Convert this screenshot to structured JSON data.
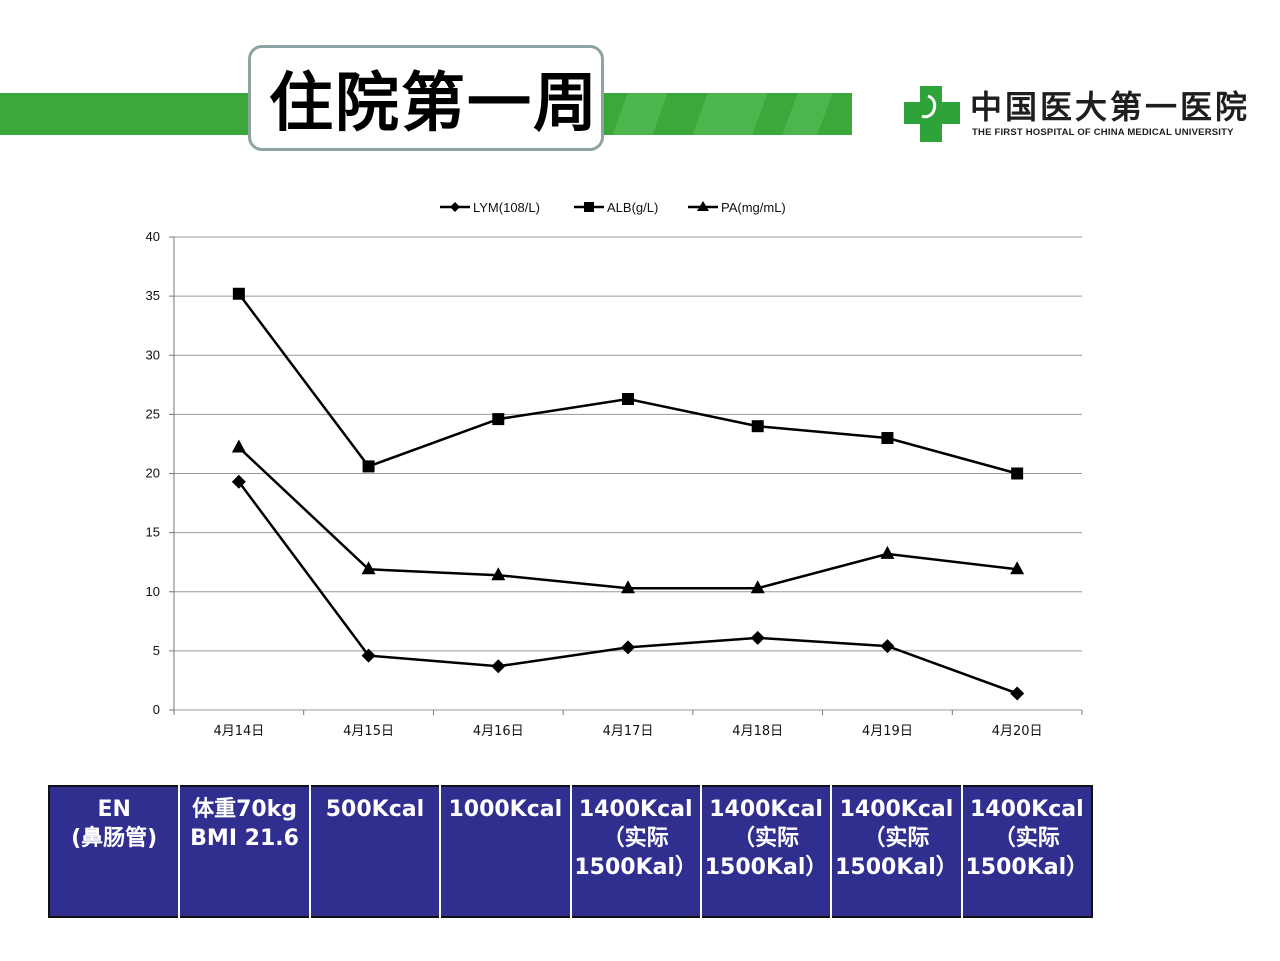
{
  "header": {
    "title": "住院第一周",
    "logo_cn": "中国医大第一医院",
    "logo_en": "THE FIRST HOSPITAL OF CHINA MEDICAL UNIVERSITY",
    "band_color": "#3aa83a",
    "logo_color": "#2ea33a"
  },
  "chart_data": {
    "type": "line",
    "title": "",
    "xlabel": "",
    "ylabel": "",
    "categories": [
      "4月14日",
      "4月15日",
      "4月16日",
      "4月17日",
      "4月18日",
      "4月19日",
      "4月20日"
    ],
    "ylim": [
      0,
      40
    ],
    "yticks": [
      "0",
      "5",
      "10",
      "15",
      "20",
      "25",
      "30",
      "35",
      "40"
    ],
    "grid": true,
    "legend": "top",
    "series": [
      {
        "name": "LYM(108/L)",
        "marker": "diamond",
        "values": [
          19.3,
          4.6,
          3.7,
          5.3,
          6.1,
          5.4,
          1.4
        ]
      },
      {
        "name": "ALB(g/L)",
        "marker": "square",
        "values": [
          35.2,
          20.6,
          24.6,
          26.3,
          24.0,
          23.0,
          20.0
        ]
      },
      {
        "name": "PA(mg/mL)",
        "marker": "triangle",
        "values": [
          22.2,
          11.9,
          11.4,
          10.3,
          10.3,
          13.2,
          11.9
        ]
      }
    ]
  },
  "table": {
    "bg_color": "#302f8f",
    "cells": [
      [
        "EN",
        "(鼻肠管)"
      ],
      [
        "体重70kg",
        "BMI 21.6"
      ],
      [
        "500Kcal"
      ],
      [
        "1000Kcal"
      ],
      [
        "1400Kcal",
        "（实际",
        "1500Kal）"
      ],
      [
        "1400Kcal",
        "（实际",
        "1500Kal）"
      ],
      [
        "1400Kcal",
        "（实际",
        "1500Kal）"
      ],
      [
        "1400Kcal",
        "（实际",
        "1500Kal）"
      ]
    ]
  }
}
